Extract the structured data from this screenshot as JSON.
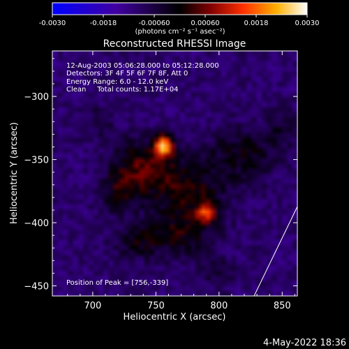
{
  "colorbar": {
    "ticks": [
      "-0.0030",
      "-0.0018",
      "-0.00060",
      "0.00060",
      "0.0018",
      "0.0030"
    ],
    "unit_label": "(photons cm⁻² s⁻¹ asec⁻²)",
    "colors": [
      "#0000ff",
      "#4000a0",
      "#000000",
      "#800000",
      "#ff3000",
      "#ffb000",
      "#ffffff"
    ]
  },
  "title": "Reconstructed RHESSI Image",
  "annotations": {
    "time": "12-Aug-2003 05:06:28.000 to 05:12:28.000",
    "detectors": "Detectors: 3F 4F 5F 6F 7F 8F, Att 0",
    "energy": "Energy Range: 6.0 - 12.0 keV",
    "clean": "Clean     Total counts: 1.17E+04",
    "peak": "Position of Peak = [756,-339]"
  },
  "footer_date": "4-May-2022 18:36",
  "chart_data": {
    "type": "heatmap",
    "title": "Reconstructed RHESSI Image",
    "xlabel": "Heliocentric X (arcsec)",
    "ylabel": "Heliocentric Y (arcsec)",
    "xlim": [
      668,
      862
    ],
    "ylim": [
      -458,
      -264
    ],
    "xticks": [
      700,
      750,
      800,
      850
    ],
    "yticks": [
      -300,
      -350,
      -400,
      -450
    ],
    "xtick_labels": [
      "700",
      "750",
      "800",
      "850"
    ],
    "ytick_labels": [
      "−300",
      "−350",
      "−400",
      "−450"
    ],
    "colorbar_range": [
      -0.003,
      0.003
    ],
    "peak": [
      756,
      -339
    ],
    "sources": [
      {
        "x": 756,
        "y": -339,
        "value": 0.003,
        "sx": 5,
        "sy": 6
      },
      {
        "x": 790,
        "y": -392,
        "value": 0.0022,
        "sx": 5,
        "sy": 5
      },
      {
        "x": 740,
        "y": -355,
        "value": 0.0013,
        "sx": 16,
        "sy": 14
      },
      {
        "x": 775,
        "y": -375,
        "value": 0.0011,
        "sx": 22,
        "sy": 18
      },
      {
        "x": 720,
        "y": -375,
        "value": 0.0009,
        "sx": 10,
        "sy": 12
      },
      {
        "x": 820,
        "y": -345,
        "value": 0.0009,
        "sx": 18,
        "sy": 14
      },
      {
        "x": 770,
        "y": -410,
        "value": 0.0009,
        "sx": 18,
        "sy": 12
      },
      {
        "x": 735,
        "y": -415,
        "value": 0.0008,
        "sx": 12,
        "sy": 10
      },
      {
        "x": 705,
        "y": -320,
        "value": 0.0006,
        "sx": 8,
        "sy": 8
      },
      {
        "x": 850,
        "y": -325,
        "value": 0.0006,
        "sx": 8,
        "sy": 10
      },
      {
        "x": 800,
        "y": -440,
        "value": 0.0005,
        "sx": 10,
        "sy": 8
      }
    ]
  }
}
